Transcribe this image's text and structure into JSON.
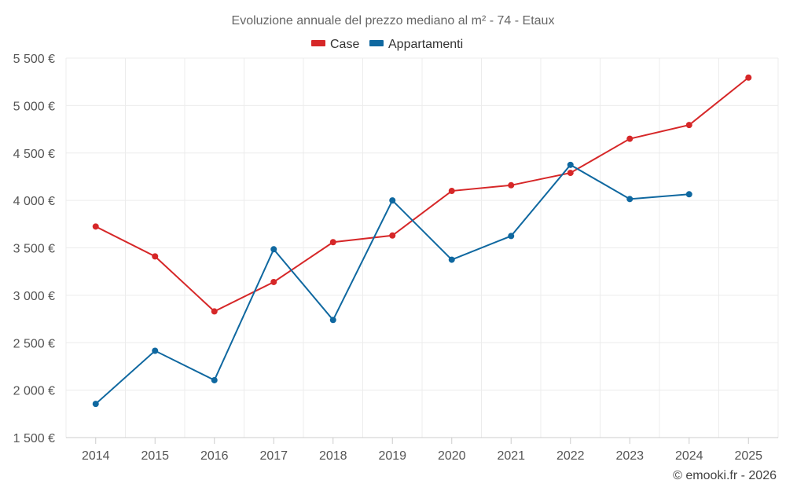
{
  "chart_data": {
    "type": "line",
    "title": "Evoluzione annuale del prezzo mediano al m² - 74 - Etaux",
    "xlabel": "",
    "ylabel": "",
    "categories": [
      "2014",
      "2015",
      "2016",
      "2017",
      "2018",
      "2019",
      "2020",
      "2021",
      "2022",
      "2023",
      "2024",
      "2025"
    ],
    "ylim": [
      1500,
      5500
    ],
    "yticks": [
      1500,
      2000,
      2500,
      3000,
      3500,
      4000,
      4500,
      5000,
      5500
    ],
    "ytick_labels": [
      "1 500 €",
      "2 000 €",
      "2 500 €",
      "3 000 €",
      "3 500 €",
      "4 000 €",
      "4 500 €",
      "5 000 €",
      "5 500 €"
    ],
    "grid": true,
    "legend_position": "top-center",
    "series": [
      {
        "name": "Case",
        "color": "#d62728",
        "values": [
          3725,
          3410,
          2830,
          3140,
          3560,
          3630,
          4100,
          4160,
          4290,
          4650,
          4795,
          5295
        ]
      },
      {
        "name": "Appartamenti",
        "color": "#0f68a0",
        "values": [
          1855,
          2415,
          2105,
          3485,
          2740,
          4000,
          3375,
          3625,
          4375,
          4015,
          4065,
          null
        ]
      }
    ],
    "credit": "© emooki.fr - 2026"
  }
}
